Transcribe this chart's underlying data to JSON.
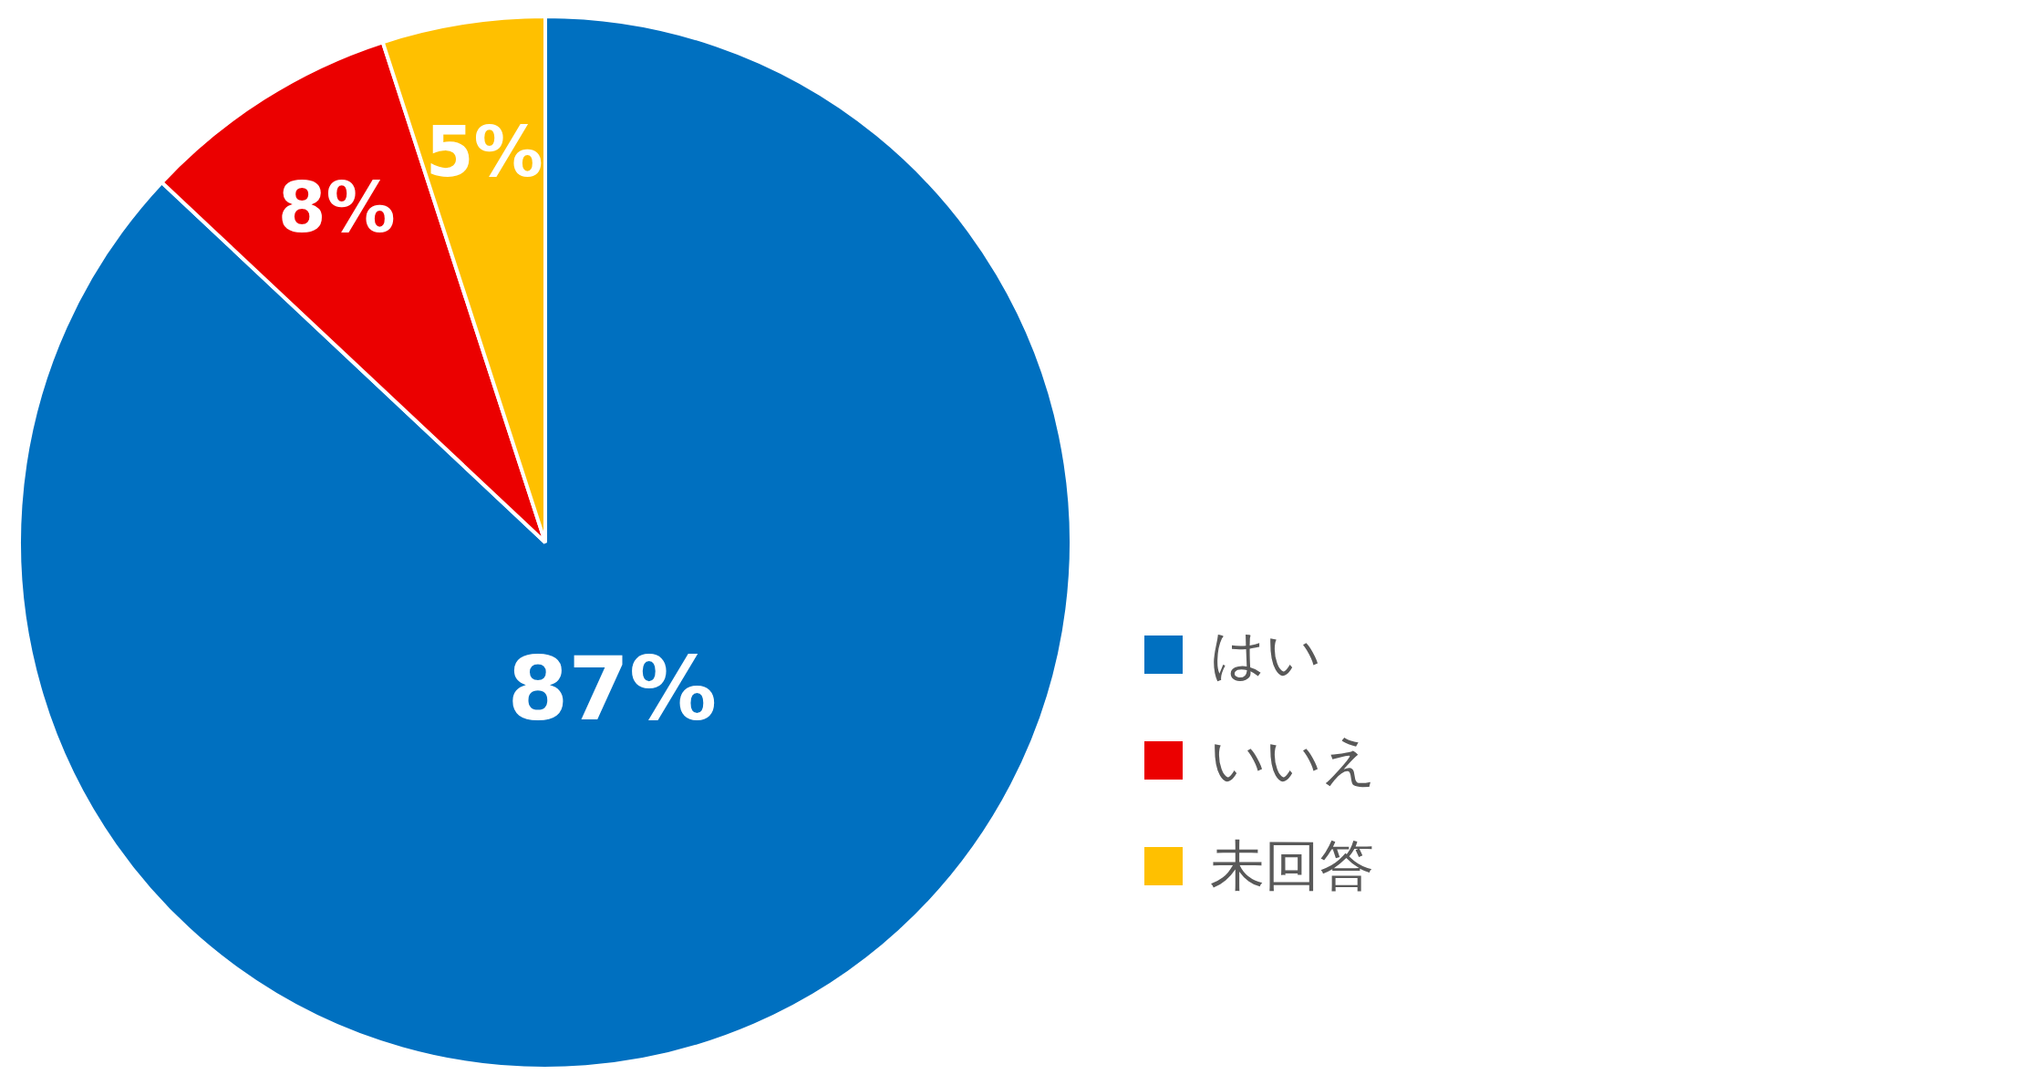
{
  "chart_data": {
    "type": "pie",
    "categories": [
      "はい",
      "いいえ",
      "未回答"
    ],
    "values": [
      87,
      8,
      5
    ],
    "colors": [
      "#0070c0",
      "#eb0000",
      "#ffc000"
    ],
    "value_labels": [
      "87%",
      "8%",
      "5%"
    ],
    "legend": "right"
  }
}
